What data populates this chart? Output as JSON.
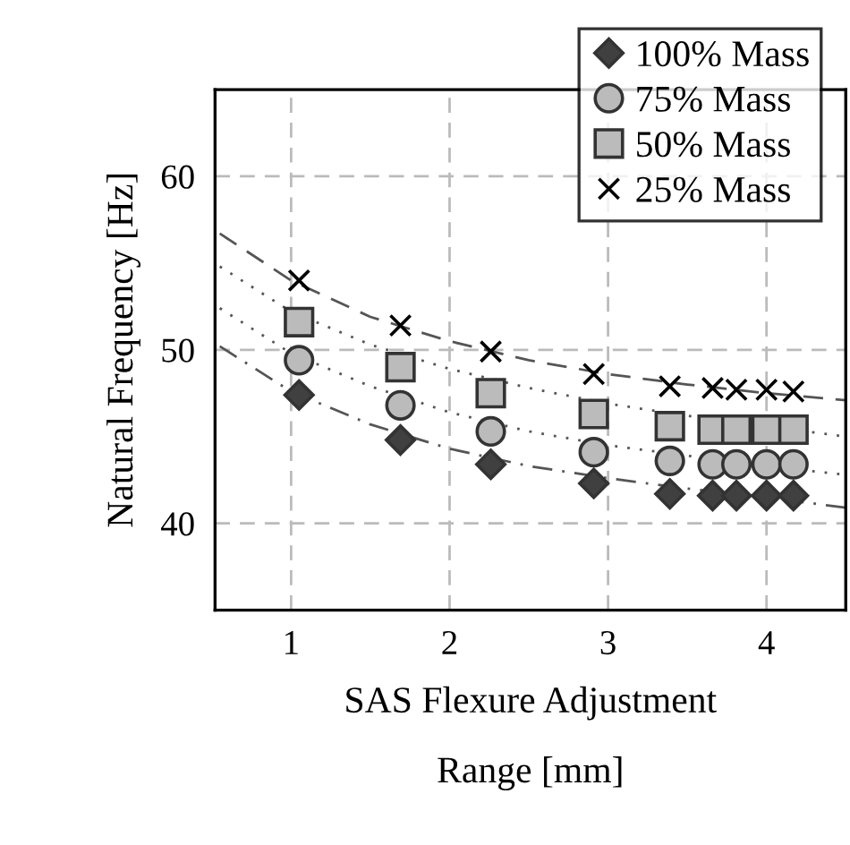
{
  "chart_data": {
    "type": "scatter",
    "xlabel": "SAS Flexure Adjustment\nRange [mm]",
    "ylabel": "Natural Frequency [Hz]",
    "x": [
      1.05,
      1.69,
      2.26,
      2.91,
      3.39,
      3.66,
      3.81,
      4.0,
      4.17
    ],
    "series": [
      {
        "name": "100% Mass",
        "color": "#404040",
        "marker": "diamond",
        "values": [
          47.4,
          44.8,
          43.4,
          42.3,
          41.7,
          41.6,
          41.6,
          41.6,
          41.6
        ]
      },
      {
        "name": "75% Mass",
        "color": "#bbbbbb",
        "marker": "circle",
        "values": [
          49.4,
          46.8,
          45.3,
          44.1,
          43.6,
          43.4,
          43.4,
          43.4,
          43.4
        ]
      },
      {
        "name": "50% Mass",
        "color": "#bbbbbb",
        "marker": "square",
        "values": [
          51.6,
          49.0,
          47.5,
          46.3,
          45.6,
          45.4,
          45.4,
          45.4,
          45.4
        ]
      },
      {
        "name": "25% Mass",
        "color": "#000000",
        "marker": "cross",
        "values": [
          54.0,
          51.4,
          49.9,
          48.6,
          47.9,
          47.8,
          47.7,
          47.7,
          47.6
        ]
      },
      {
        "type": "line",
        "color": "#555555",
        "line_style": "dashdot",
        "x": [
          0.55,
          1,
          1.5,
          2,
          2.5,
          3,
          3.5,
          4,
          4.5
        ],
        "values": [
          50.2,
          47.6,
          45.7,
          44.3,
          43.3,
          42.6,
          42.0,
          41.5,
          40.9
        ]
      },
      {
        "type": "line",
        "color": "#555555",
        "line_style": "dotted",
        "x": [
          0.55,
          1,
          1.5,
          2,
          2.5,
          3,
          3.5,
          4,
          4.5
        ],
        "values": [
          52.4,
          49.8,
          47.9,
          46.4,
          45.3,
          44.5,
          43.9,
          43.3,
          42.8
        ]
      },
      {
        "type": "line",
        "color": "#555555",
        "line_style": "dotted",
        "x": [
          0.55,
          1,
          1.5,
          2,
          2.5,
          3,
          3.5,
          4,
          4.5
        ],
        "values": [
          54.8,
          52.2,
          50.3,
          48.9,
          47.8,
          46.9,
          46.2,
          45.6,
          45.0
        ]
      },
      {
        "type": "line",
        "color": "#555555",
        "line_style": "dashed",
        "x": [
          0.55,
          1,
          1.5,
          2,
          2.5,
          3,
          3.5,
          4,
          4.5
        ],
        "values": [
          56.7,
          54.0,
          51.9,
          50.5,
          49.4,
          48.6,
          48.0,
          47.5,
          47.1
        ]
      }
    ],
    "xlim": [
      0.52,
      4.5
    ],
    "ylim": [
      35,
      65
    ],
    "xticks": [
      1,
      2,
      3,
      4
    ],
    "yticks": [
      40,
      50,
      60
    ],
    "grid": true,
    "legend": "top right"
  }
}
